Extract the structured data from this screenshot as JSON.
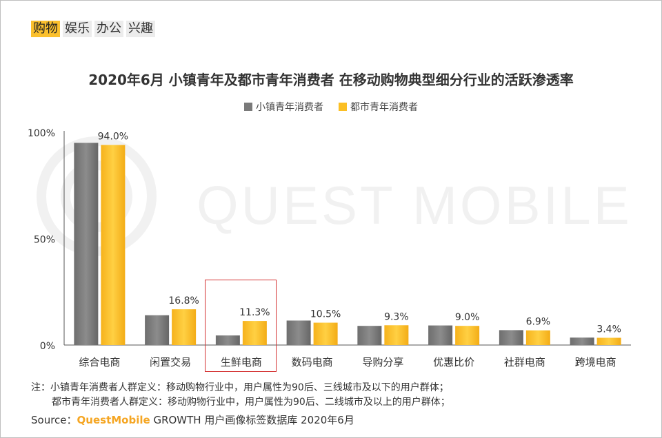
{
  "tabs": [
    {
      "label": "购物",
      "active": true
    },
    {
      "label": "娱乐",
      "active": false
    },
    {
      "label": "办公",
      "active": false
    },
    {
      "label": "兴趣",
      "active": false
    }
  ],
  "watermark": "QUEST MOBILE",
  "colors": {
    "series_gray": "#7a7a7a",
    "series_yellow": "#fbbf24",
    "highlight": "#d32f2f",
    "brand": "#f5a623"
  },
  "chart_data": {
    "type": "bar",
    "title": "2020年6月 小镇青年及都市青年消费者 在移动购物典型细分行业的活跃渗透率",
    "categories": [
      "综合电商",
      "闲置交易",
      "生鲜电商",
      "数码电商",
      "导购分享",
      "优惠比价",
      "社群电商",
      "跨境电商"
    ],
    "series": [
      {
        "name": "小镇青年消费者",
        "values": [
          95.0,
          14.0,
          4.5,
          11.5,
          9.0,
          9.2,
          7.0,
          3.5
        ],
        "labels": [
          "",
          "",
          "",
          "",
          "",
          "",
          "",
          ""
        ]
      },
      {
        "name": "都市青年消费者",
        "values": [
          94.0,
          16.8,
          11.3,
          10.5,
          9.3,
          9.0,
          6.9,
          3.4
        ],
        "labels": [
          "94.0%",
          "16.8%",
          "11.3%",
          "10.5%",
          "9.3%",
          "9.0%",
          "6.9%",
          "3.4%"
        ]
      }
    ],
    "yticks": [
      "0%",
      "50%",
      "100%"
    ],
    "ylim": [
      0,
      100
    ],
    "highlight_category": "生鲜电商",
    "legend_position": "top-center",
    "grid": false
  },
  "notes": {
    "line1": "注：小镇青年消费者人群定义：移动购物行业中，用户属性为90后、三线城市及以下的用户群体；",
    "line2": "都市青年消费者人群定义：移动购物行业中，用户属性为90后、二线城市及以上的用户群体；"
  },
  "source": {
    "prefix": "Source：",
    "brand": "QuestMobile",
    "rest": " GROWTH 用户画像标签数据库 2020年6月"
  }
}
